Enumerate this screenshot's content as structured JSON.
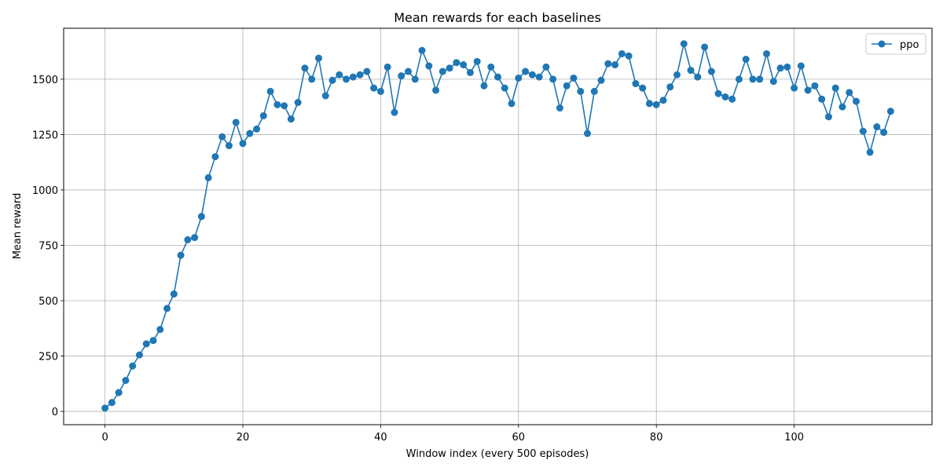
{
  "chart_data": {
    "type": "line",
    "title": "Mean rewards for each baselines",
    "xlabel": "Window index (every 500 episodes)",
    "ylabel": "Mean reward",
    "xlim": [
      -6,
      120
    ],
    "ylim": [
      -60,
      1730
    ],
    "xticks": [
      0,
      20,
      40,
      60,
      80,
      100
    ],
    "yticks": [
      0,
      250,
      500,
      750,
      1000,
      1250,
      1500
    ],
    "grid": true,
    "legend_position": "top-right",
    "series": [
      {
        "name": "ppo",
        "color": "#1f77b4",
        "marker": "circle",
        "x": [
          0,
          1,
          2,
          3,
          4,
          5,
          6,
          7,
          8,
          9,
          10,
          11,
          12,
          13,
          14,
          15,
          16,
          17,
          18,
          19,
          20,
          21,
          22,
          23,
          24,
          25,
          26,
          27,
          28,
          29,
          30,
          31,
          32,
          33,
          34,
          35,
          36,
          37,
          38,
          39,
          40,
          41,
          42,
          43,
          44,
          45,
          46,
          47,
          48,
          49,
          50,
          51,
          52,
          53,
          54,
          55,
          56,
          57,
          58,
          59,
          60,
          61,
          62,
          63,
          64,
          65,
          66,
          67,
          68,
          69,
          70,
          71,
          72,
          73,
          74,
          75,
          76,
          77,
          78,
          79,
          80,
          81,
          82,
          83,
          84,
          85,
          86,
          87,
          88,
          89,
          90,
          91,
          92,
          93,
          94,
          95,
          96,
          97,
          98,
          99,
          100,
          101,
          102,
          103,
          104,
          105,
          106,
          107,
          108,
          109,
          110,
          111,
          112,
          113,
          114
        ],
        "values": [
          15,
          40,
          85,
          140,
          205,
          255,
          305,
          320,
          370,
          465,
          530,
          705,
          775,
          785,
          880,
          1055,
          1150,
          1240,
          1200,
          1305,
          1210,
          1255,
          1275,
          1335,
          1445,
          1385,
          1380,
          1320,
          1395,
          1550,
          1500,
          1595,
          1425,
          1495,
          1520,
          1500,
          1510,
          1520,
          1535,
          1460,
          1445,
          1555,
          1350,
          1515,
          1535,
          1500,
          1630,
          1560,
          1450,
          1535,
          1550,
          1575,
          1565,
          1530,
          1580,
          1470,
          1555,
          1510,
          1460,
          1390,
          1505,
          1535,
          1520,
          1510,
          1555,
          1500,
          1370,
          1470,
          1505,
          1445,
          1255,
          1445,
          1495,
          1570,
          1565,
          1615,
          1605,
          1480,
          1460,
          1390,
          1385,
          1405,
          1465,
          1520,
          1660,
          1540,
          1510,
          1645,
          1535,
          1435,
          1420,
          1410,
          1500,
          1590,
          1500,
          1500,
          1615,
          1490,
          1550,
          1555,
          1460,
          1560,
          1450,
          1470,
          1410,
          1330,
          1460,
          1375,
          1440,
          1400,
          1265,
          1170,
          1285,
          1260,
          1355
        ]
      }
    ]
  }
}
